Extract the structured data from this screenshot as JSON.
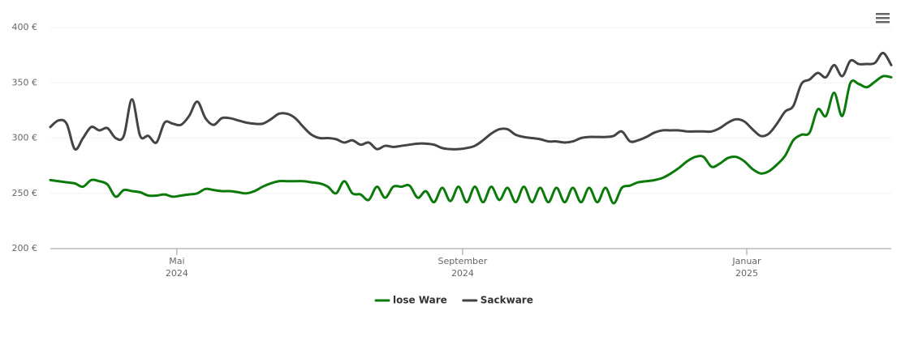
{
  "chart_data": {
    "type": "line",
    "series": [
      {
        "name": "lose Ware",
        "color": "#0b7a0b",
        "values": [
          262,
          261,
          260,
          259,
          256,
          262,
          261,
          258,
          247,
          253,
          252,
          251,
          248,
          248,
          249,
          247,
          248,
          249,
          250,
          254,
          253,
          252,
          252,
          251,
          250,
          252,
          256,
          259,
          261,
          261,
          261,
          261,
          260,
          259,
          256,
          250,
          261,
          250,
          249,
          244,
          256,
          246,
          256,
          256,
          257,
          246,
          252,
          242,
          255,
          243,
          256,
          242,
          256,
          242,
          256,
          244,
          255,
          242,
          256,
          242,
          255,
          242,
          255,
          242,
          255,
          242,
          255,
          242,
          255,
          241,
          255,
          257,
          260,
          261,
          262,
          264,
          268,
          273,
          279,
          283,
          283,
          274,
          277,
          282,
          283,
          279,
          272,
          268,
          270,
          276,
          284,
          298,
          303,
          305,
          326,
          320,
          341,
          320,
          350,
          349,
          346,
          351,
          356,
          355
        ]
      },
      {
        "name": "Sackware",
        "color": "#434348",
        "values": [
          310,
          316,
          313,
          290,
          300,
          310,
          307,
          309,
          300,
          302,
          335,
          302,
          302,
          296,
          314,
          313,
          312,
          320,
          333,
          318,
          312,
          318,
          318,
          316,
          314,
          313,
          313,
          317,
          322,
          322,
          318,
          310,
          303,
          300,
          300,
          299,
          296,
          298,
          294,
          296,
          290,
          293,
          292,
          293,
          294,
          295,
          295,
          294,
          291,
          290,
          290,
          291,
          293,
          298,
          304,
          308,
          308,
          303,
          301,
          300,
          299,
          297,
          297,
          296,
          297,
          300,
          301,
          301,
          301,
          302,
          306,
          297,
          298,
          301,
          305,
          307,
          307,
          307,
          306,
          306,
          306,
          306,
          309,
          314,
          317,
          315,
          308,
          302,
          304,
          313,
          324,
          329,
          349,
          353,
          359,
          355,
          366,
          356,
          370,
          367,
          367,
          368,
          377,
          366
        ]
      }
    ],
    "xlim": [
      0,
      103
    ],
    "xticks": [
      {
        "value": 15.5,
        "label": "Mai",
        "year": "2024"
      },
      {
        "value": 50.5,
        "label": "September",
        "year": "2024"
      },
      {
        "value": 85.3,
        "label": "Januar",
        "year": "2025"
      }
    ],
    "ylim": [
      200,
      400
    ],
    "yticks": [
      {
        "value": 200,
        "label": "200 €"
      },
      {
        "value": 250,
        "label": "250 €"
      },
      {
        "value": 300,
        "label": "300 €"
      },
      {
        "value": 350,
        "label": "350 €"
      },
      {
        "value": 400,
        "label": "400 €"
      }
    ],
    "grid": true,
    "legend": "bottom"
  }
}
